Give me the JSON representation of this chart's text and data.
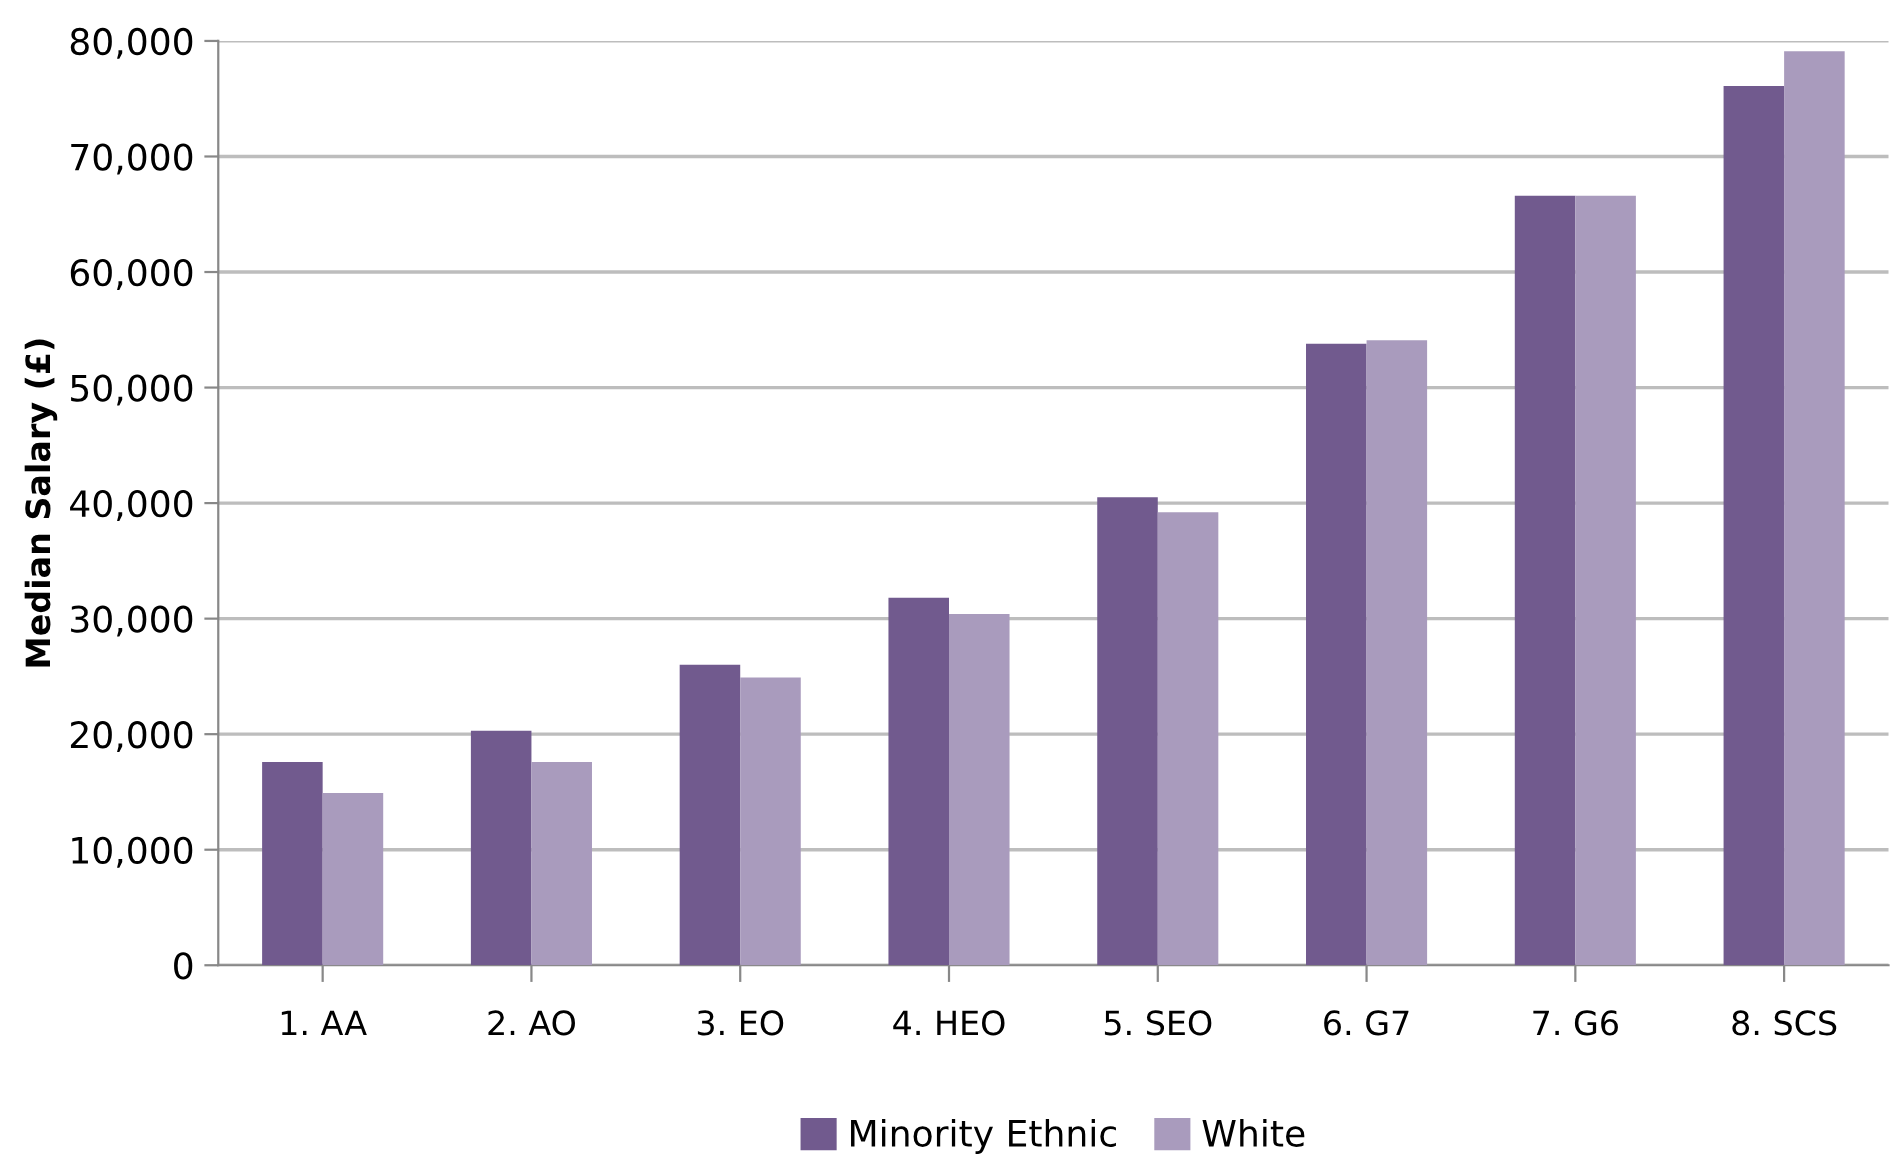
{
  "chart_data": {
    "type": "bar",
    "ylabel": "Median Salary (£)",
    "categories": [
      "1. AA",
      "2. AO",
      "3. EO",
      "4. HEO",
      "5. SEO",
      "6. G7",
      "7. G6",
      "8. SCS"
    ],
    "series": [
      {
        "name": "Minority Ethnic",
        "color": "#715a8e",
        "values": [
          17600,
          20300,
          26000,
          31800,
          40500,
          53800,
          66600,
          76100
        ]
      },
      {
        "name": "White",
        "color": "#a99bbd",
        "values": [
          14900,
          17600,
          24900,
          30400,
          39200,
          54100,
          66600,
          79100
        ]
      }
    ],
    "ylim": [
      0,
      80000
    ],
    "yticks": [
      {
        "value": 0,
        "label": "0"
      },
      {
        "value": 10000,
        "label": "10,000"
      },
      {
        "value": 20000,
        "label": "20,000"
      },
      {
        "value": 30000,
        "label": "30,000"
      },
      {
        "value": 40000,
        "label": "40,000"
      },
      {
        "value": 50000,
        "label": "50,000"
      },
      {
        "value": 60000,
        "label": "60,000"
      },
      {
        "value": 70000,
        "label": "70,000"
      },
      {
        "value": 80000,
        "label": "80,000"
      }
    ],
    "grid": "y",
    "legend": "bottom"
  }
}
